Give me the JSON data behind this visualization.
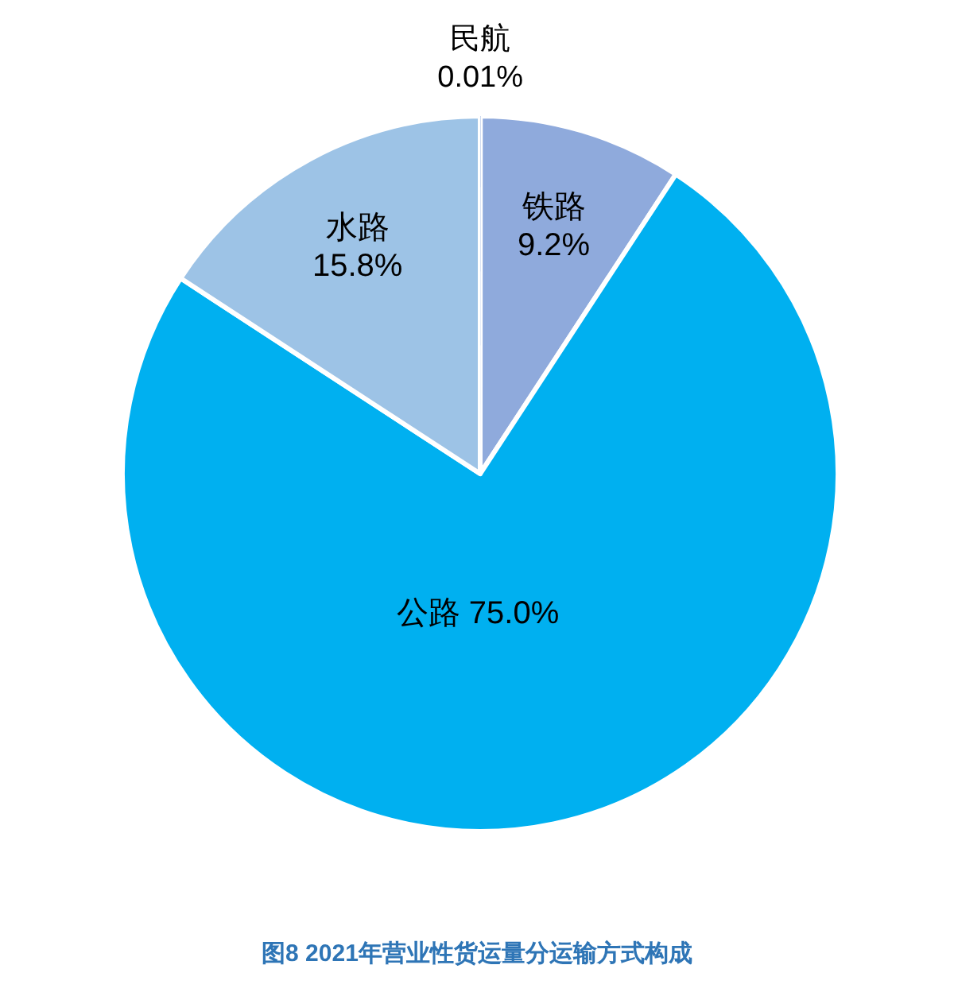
{
  "chart_data": {
    "type": "pie",
    "title": "图8 2021年营业性货运量分运输方式构成",
    "categories": [
      "民航",
      "铁路",
      "公路",
      "水路"
    ],
    "values": [
      0.01,
      9.2,
      75.0,
      15.8
    ],
    "value_labels": [
      "0.01%",
      "9.2%",
      "75.0%",
      "15.8%"
    ],
    "colors": [
      "#4472c4",
      "#8faadc",
      "#00b0f0",
      "#9dc3e6"
    ]
  }
}
